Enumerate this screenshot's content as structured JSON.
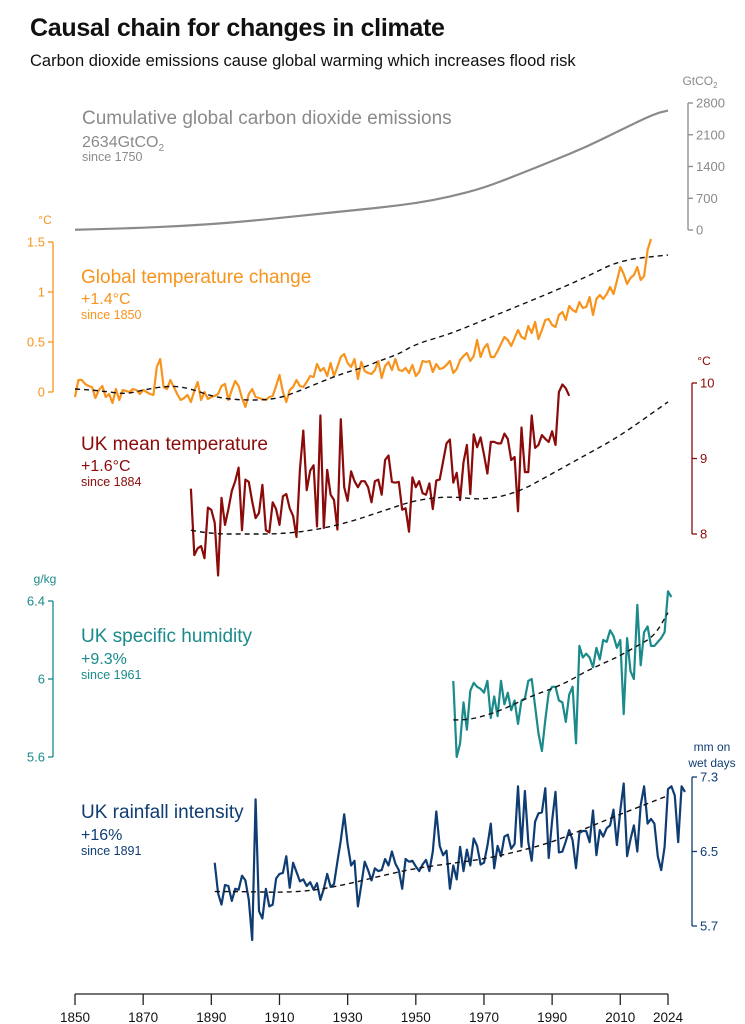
{
  "header": {
    "title": "Causal chain for changes in climate",
    "subtitle": "Carbon dioxide emissions cause global warming which increases flood risk"
  },
  "chart_data": {
    "type": "line",
    "title": "Causal chain for changes in climate",
    "subtitle": "Carbon dioxide emissions cause global warming which increases flood risk",
    "x_axis": {
      "range": [
        1850,
        2024
      ],
      "ticks": [
        1850,
        1870,
        1890,
        1910,
        1930,
        1950,
        1970,
        1990,
        2010,
        2024
      ],
      "tick_labels": [
        "1850",
        "1870",
        "1890",
        "1910",
        "1930",
        "1950",
        "1970",
        "1990",
        "2010",
        "2024"
      ]
    },
    "panels": [
      {
        "id": "co2",
        "name": "Cumulative global carbon dioxide emissions",
        "value_label": "2634GtCO",
        "value_sub": "2",
        "since_label": "since 1750",
        "color": "#8a8a8a",
        "unit": "GtCO",
        "unit_sub": "2",
        "axis_side": "right",
        "ylim": [
          0,
          2800
        ],
        "ticks": [
          0,
          700,
          1400,
          2100,
          2800
        ],
        "tick_labels": [
          "0",
          "700",
          "1400",
          "2100",
          "2800"
        ],
        "has_trend": false,
        "x": [
          1850,
          1860,
          1870,
          1880,
          1890,
          1900,
          1910,
          1920,
          1930,
          1940,
          1950,
          1960,
          1970,
          1980,
          1990,
          2000,
          2010,
          2020,
          2024
        ],
        "values": [
          5,
          25,
          50,
          85,
          130,
          190,
          265,
          345,
          420,
          500,
          590,
          730,
          930,
          1220,
          1520,
          1830,
          2200,
          2560,
          2634
        ]
      },
      {
        "id": "global-temp",
        "name": "Global temperature change",
        "value_label": "+1.4°C",
        "since_label": "since 1850",
        "color": "#f7941d",
        "unit": "°C",
        "axis_side": "left",
        "ylim": [
          0,
          1.5
        ],
        "ticks": [
          0,
          0.5,
          1,
          1.5
        ],
        "tick_labels": [
          "0",
          "0.5",
          "1",
          "1.5"
        ],
        "has_trend": true,
        "start_year": 1850,
        "values": [
          -0.05,
          0.12,
          0.12,
          0.08,
          0.06,
          0.05,
          -0.06,
          0.02,
          0.06,
          -0.05,
          -0.02,
          -0.11,
          0.03,
          -0.08,
          0.02,
          0.01,
          0.0,
          0.03,
          0.02,
          -0.02,
          0.02,
          0.0,
          -0.02,
          -0.03,
          0.25,
          0.33,
          0.05,
          0.03,
          0.12,
          0.05,
          -0.02,
          -0.08,
          -0.06,
          -0.03,
          -0.1,
          0.01,
          0.1,
          -0.08,
          0.0,
          -0.07,
          -0.05,
          -0.04,
          -0.02,
          0.06,
          0.08,
          -0.08,
          0.02,
          0.11,
          0.06,
          -0.06,
          -0.15,
          -0.02,
          0.03,
          -0.05,
          -0.06,
          -0.07,
          -0.08,
          -0.05,
          -0.04,
          0.06,
          0.17,
          0.0,
          -0.1,
          0.02,
          0.05,
          0.12,
          0.06,
          0.05,
          0.1,
          0.16,
          0.15,
          0.28,
          0.21,
          0.24,
          0.16,
          0.29,
          0.16,
          0.25,
          0.35,
          0.38,
          0.29,
          0.25,
          0.33,
          0.13,
          0.3,
          0.21,
          0.19,
          0.18,
          0.22,
          0.31,
          0.14,
          0.26,
          0.3,
          0.22,
          0.33,
          0.22,
          0.21,
          0.24,
          0.19,
          0.27,
          0.16,
          0.2,
          0.31,
          0.3,
          0.31,
          0.2,
          0.28,
          0.23,
          0.24,
          0.27,
          0.31,
          0.19,
          0.23,
          0.32,
          0.36,
          0.39,
          0.31,
          0.36,
          0.52,
          0.35,
          0.44,
          0.48,
          0.35,
          0.35,
          0.41,
          0.48,
          0.55,
          0.52,
          0.46,
          0.54,
          0.62,
          0.55,
          0.53,
          0.66,
          0.59,
          0.7,
          0.53,
          0.62,
          0.72,
          0.73,
          0.67,
          0.65,
          0.77,
          0.8,
          0.72,
          0.86,
          0.82,
          0.8,
          0.9,
          0.84,
          0.85,
          0.95,
          0.77,
          0.93,
          0.97,
          0.93,
          0.98,
          1.05,
          0.98,
          1.11,
          1.25,
          1.18,
          1.08,
          1.14,
          1.17,
          1.25,
          1.12,
          1.16,
          1.42,
          1.53
        ],
        "trend_values": [
          0.03,
          0.02,
          0.0,
          -0.02,
          0.02,
          0.05,
          0.06,
          0.02,
          -0.04,
          -0.07,
          -0.08,
          -0.08,
          -0.06,
          0.0,
          0.07,
          0.14,
          0.2,
          0.25,
          0.32,
          0.38,
          0.48,
          0.58,
          0.72,
          0.86,
          1.0,
          1.15,
          1.32,
          1.37
        ],
        "trend_x": [
          1850,
          1855,
          1860,
          1865,
          1870,
          1875,
          1880,
          1885,
          1890,
          1895,
          1900,
          1905,
          1910,
          1915,
          1920,
          1925,
          1930,
          1935,
          1940,
          1945,
          1950,
          1960,
          1970,
          1980,
          1990,
          2000,
          2010,
          2024
        ]
      },
      {
        "id": "uk-temp",
        "name": "UK mean temperature",
        "value_label": "+1.6°C",
        "since_label": "since 1884",
        "color": "#8b0a0a",
        "unit": "°C",
        "axis_side": "right",
        "ylim": [
          8,
          10
        ],
        "ticks": [
          8,
          9,
          10
        ],
        "tick_labels": [
          "8",
          "9",
          "10"
        ],
        "has_trend": true,
        "start_year": 1884,
        "values": [
          8.6,
          7.72,
          7.81,
          7.84,
          7.68,
          8.35,
          8.32,
          8.15,
          7.45,
          8.48,
          8.12,
          8.33,
          8.57,
          8.7,
          8.88,
          8.05,
          8.72,
          8.69,
          8.43,
          8.21,
          8.28,
          8.65,
          8.05,
          8.02,
          8.42,
          8.33,
          8.12,
          8.5,
          8.53,
          8.34,
          8.24,
          7.96,
          8.85,
          9.37,
          8.58,
          8.84,
          8.91,
          8.1,
          9.57,
          8.08,
          8.85,
          8.52,
          8.45,
          8.06,
          9.52,
          8.62,
          8.44,
          8.83,
          8.7,
          8.62,
          8.7,
          8.7,
          8.62,
          8.42,
          8.7,
          8.72,
          8.52,
          8.98,
          9.04,
          8.69,
          8.68,
          8.69,
          8.32,
          8.34,
          8.03,
          8.75,
          8.62,
          8.7,
          8.54,
          8.52,
          8.67,
          8.33,
          8.71,
          8.72,
          8.96,
          9.2,
          9.25,
          8.68,
          8.81,
          8.45,
          8.95,
          9.18,
          8.53,
          9.32,
          9.15,
          9.28,
          9.05,
          8.8,
          9.22,
          9.22,
          9.2,
          9.2,
          9.33,
          9.26,
          8.98,
          9.02,
          8.3,
          9.41,
          8.82,
          8.82,
          9.57,
          9.14,
          9.18,
          9.31,
          9.26,
          9.22,
          9.36,
          9.18,
          9.88,
          9.98,
          9.93,
          9.83
        ],
        "trend_x": [
          1884,
          1890,
          1900,
          1910,
          1920,
          1930,
          1940,
          1950,
          1960,
          1970,
          1980,
          1990,
          2000,
          2010,
          2024
        ],
        "trend_values": [
          8.05,
          8.0,
          8.0,
          8.0,
          8.05,
          8.15,
          8.3,
          8.45,
          8.5,
          8.45,
          8.55,
          8.8,
          9.05,
          9.3,
          9.75
        ]
      },
      {
        "id": "uk-humidity",
        "name": "UK specific humidity",
        "value_label": "+9.3%",
        "since_label": "since 1961",
        "color": "#1a8a8a",
        "unit": "g/kg",
        "axis_side": "left",
        "ylim": [
          5.6,
          6.4
        ],
        "ticks": [
          5.6,
          6.0,
          6.4
        ],
        "tick_labels": [
          "5.6",
          "6",
          "6.4"
        ],
        "has_trend": true,
        "start_year": 1961,
        "values": [
          5.99,
          5.6,
          5.67,
          5.88,
          5.74,
          5.94,
          5.98,
          5.96,
          5.95,
          5.93,
          5.99,
          5.8,
          5.91,
          5.81,
          5.99,
          5.87,
          5.93,
          5.84,
          5.89,
          5.77,
          5.89,
          5.9,
          5.99,
          6.0,
          5.86,
          5.72,
          5.63,
          5.79,
          5.93,
          5.96,
          5.96,
          5.89,
          5.88,
          5.78,
          5.92,
          5.96,
          5.67,
          6.17,
          6.11,
          6.13,
          6.11,
          6.06,
          6.16,
          6.1,
          6.2,
          6.19,
          6.25,
          6.22,
          6.16,
          6.2,
          5.82,
          6.21,
          6.04,
          6.0,
          6.38,
          6.07,
          6.24,
          6.27,
          6.17,
          6.17,
          6.19,
          6.21,
          6.24,
          6.45,
          6.42
        ],
        "trend_x": [
          1961,
          1965,
          1970,
          1975,
          1980,
          1985,
          1990,
          1995,
          2000,
          2005,
          2010,
          2015,
          2020,
          2024
        ],
        "trend_values": [
          5.79,
          5.79,
          5.81,
          5.84,
          5.88,
          5.92,
          5.95,
          5.99,
          6.04,
          6.08,
          6.12,
          6.17,
          6.22,
          6.34
        ]
      },
      {
        "id": "uk-rainfall",
        "name": "UK rainfall intensity",
        "value_label": "+16%",
        "since_label": "since 1891",
        "color": "#0f3d73",
        "unit_lines": [
          "mm on",
          "wet days"
        ],
        "axis_side": "right",
        "ylim": [
          5.7,
          7.3
        ],
        "ticks": [
          5.7,
          6.5,
          7.3
        ],
        "tick_labels": [
          "5.7",
          "6.5",
          "7.3"
        ],
        "has_trend": true,
        "start_year": 1891,
        "values": [
          6.38,
          6.05,
          5.93,
          6.14,
          6.13,
          5.97,
          6.1,
          6.09,
          6.24,
          6.19,
          5.98,
          5.55,
          7.06,
          5.86,
          5.78,
          6.1,
          5.91,
          5.93,
          6.21,
          6.26,
          6.27,
          6.45,
          6.11,
          6.38,
          6.28,
          6.18,
          6.2,
          6.13,
          6.17,
          6.09,
          6.16,
          5.98,
          6.1,
          6.26,
          6.12,
          6.15,
          6.39,
          6.62,
          6.9,
          6.58,
          6.35,
          6.4,
          5.91,
          6.14,
          6.39,
          6.3,
          6.19,
          6.32,
          6.29,
          6.3,
          6.42,
          6.35,
          6.5,
          6.37,
          6.3,
          6.1,
          6.42,
          6.39,
          6.4,
          6.34,
          6.29,
          6.36,
          6.41,
          6.29,
          6.5,
          6.93,
          6.56,
          6.46,
          6.51,
          6.1,
          6.35,
          6.2,
          6.55,
          6.29,
          6.52,
          6.35,
          6.64,
          6.56,
          6.36,
          6.38,
          6.56,
          6.8,
          6.32,
          6.56,
          6.45,
          6.66,
          6.68,
          6.53,
          6.58,
          7.2,
          6.55,
          7.15,
          6.6,
          6.4,
          6.82,
          6.91,
          6.92,
          7.18,
          6.43,
          6.83,
          7.14,
          6.49,
          6.5,
          6.61,
          6.73,
          6.62,
          6.32,
          6.7,
          6.72,
          6.72,
          6.6,
          6.94,
          6.46,
          6.73,
          6.66,
          6.75,
          6.78,
          6.95,
          6.57,
          6.94,
          7.23,
          6.45,
          6.63,
          6.78,
          6.5,
          7.0,
          7.2,
          6.8,
          6.85,
          6.8,
          6.45,
          6.3,
          6.55,
          7.17,
          7.2,
          7.1,
          6.6,
          7.2,
          7.14
        ],
        "trend_x": [
          1891,
          1900,
          1910,
          1920,
          1930,
          1940,
          1950,
          1960,
          1970,
          1980,
          1990,
          2000,
          2010,
          2024
        ],
        "trend_values": [
          6.07,
          6.07,
          6.06,
          6.08,
          6.15,
          6.24,
          6.32,
          6.37,
          6.42,
          6.5,
          6.6,
          6.75,
          6.9,
          7.1
        ]
      }
    ],
    "grid": false,
    "legend": "none (inline labels)"
  }
}
